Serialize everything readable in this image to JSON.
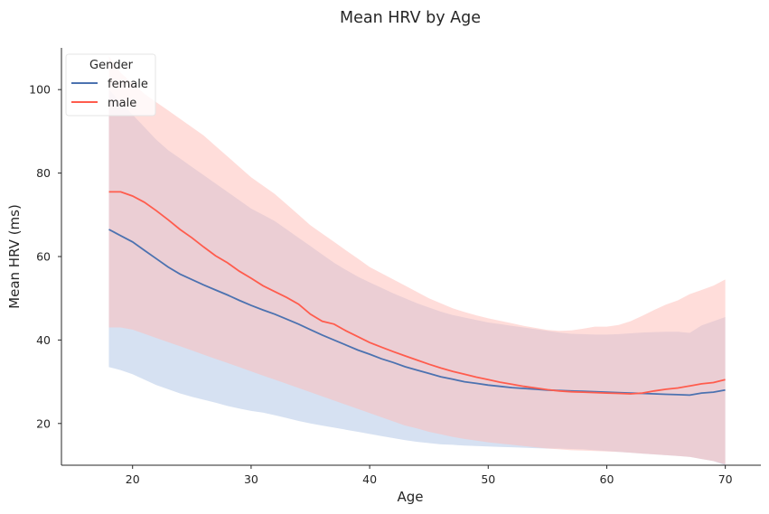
{
  "chart_data": {
    "type": "line",
    "title": "Mean HRV by Age",
    "xlabel": "Age",
    "ylabel": "Mean HRV (ms)",
    "xlim": [
      14,
      73
    ],
    "ylim": [
      10,
      110
    ],
    "xticks": [
      20,
      30,
      40,
      50,
      60,
      70
    ],
    "yticks": [
      20,
      40,
      60,
      80,
      100
    ],
    "grid": false,
    "legend": {
      "title": "Gender",
      "placement": "top-left"
    },
    "x": [
      18,
      19,
      20,
      21,
      22,
      23,
      24,
      25,
      26,
      27,
      28,
      29,
      30,
      31,
      32,
      33,
      34,
      35,
      36,
      37,
      38,
      39,
      40,
      41,
      42,
      43,
      44,
      45,
      46,
      47,
      48,
      49,
      50,
      51,
      52,
      53,
      54,
      55,
      56,
      57,
      58,
      59,
      60,
      61,
      62,
      63,
      64,
      65,
      66,
      67,
      68,
      69,
      70
    ],
    "series": [
      {
        "name": "female",
        "color": "#4c72b0",
        "band_color": "#aec4e5",
        "values": [
          66.5,
          65,
          63.5,
          61.5,
          59.5,
          57.5,
          55.8,
          54.5,
          53.2,
          52,
          50.8,
          49.5,
          48.3,
          47.2,
          46.2,
          45,
          43.8,
          42.5,
          41.2,
          40,
          38.8,
          37.6,
          36.6,
          35.5,
          34.6,
          33.6,
          32.8,
          32,
          31.2,
          30.6,
          30,
          29.6,
          29.2,
          28.9,
          28.6,
          28.4,
          28.2,
          28,
          27.9,
          27.8,
          27.7,
          27.6,
          27.5,
          27.4,
          27.3,
          27.2,
          27.1,
          27,
          26.9,
          26.8,
          27.3,
          27.5,
          28
        ],
        "lower": [
          33.5,
          32.8,
          31.8,
          30.5,
          29.2,
          28.2,
          27.2,
          26.4,
          25.7,
          25,
          24.2,
          23.6,
          23,
          22.6,
          22,
          21.3,
          20.6,
          20,
          19.5,
          19,
          18.5,
          18,
          17.5,
          17,
          16.5,
          16,
          15.6,
          15.3,
          15,
          14.9,
          14.7,
          14.6,
          14.5,
          14.4,
          14.3,
          14.2,
          14.1,
          14,
          14,
          13.9,
          13.8,
          13.6,
          13.4,
          13.2,
          13,
          12.8,
          12.6,
          12.4,
          12.2,
          12,
          11.5,
          11,
          10
        ],
        "upper": [
          100,
          97,
          94,
          91,
          88,
          85.5,
          83.5,
          81.5,
          79.5,
          77.5,
          75.5,
          73.5,
          71.5,
          70,
          68.5,
          66.5,
          64.5,
          62.5,
          60.5,
          58.5,
          56.8,
          55.2,
          53.8,
          52.5,
          51.2,
          50,
          48.8,
          47.8,
          46.8,
          46,
          45.4,
          44.8,
          44.2,
          43.8,
          43.4,
          43,
          42.6,
          42.2,
          41.8,
          41.5,
          41.4,
          41.3,
          41.3,
          41.4,
          41.6,
          41.8,
          41.9,
          42,
          42,
          41.7,
          43.5,
          44.5,
          45.5
        ]
      },
      {
        "name": "male",
        "color": "#ff5c4d",
        "band_color": "#ffbcb5",
        "values": [
          75.5,
          75.5,
          74.5,
          73,
          71,
          68.8,
          66.5,
          64.5,
          62.3,
          60.2,
          58.5,
          56.5,
          54.8,
          53,
          51.6,
          50.2,
          48.6,
          46.2,
          44.5,
          43.8,
          42.2,
          40.8,
          39.4,
          38.3,
          37.2,
          36.2,
          35.2,
          34.2,
          33.3,
          32.5,
          31.8,
          31.1,
          30.5,
          29.9,
          29.4,
          28.9,
          28.5,
          28.1,
          27.8,
          27.6,
          27.5,
          27.4,
          27.3,
          27.2,
          27.1,
          27.3,
          27.8,
          28.2,
          28.5,
          29,
          29.5,
          29.8,
          30.5
        ],
        "lower": [
          43,
          43,
          42.5,
          41.5,
          40.5,
          39.5,
          38.5,
          37.5,
          36.5,
          35.5,
          34.5,
          33.5,
          32.5,
          31.5,
          30.5,
          29.5,
          28.5,
          27.5,
          26.5,
          25.5,
          24.5,
          23.5,
          22.5,
          21.5,
          20.5,
          19.5,
          18.8,
          18,
          17.4,
          16.8,
          16.3,
          15.9,
          15.5,
          15.2,
          14.9,
          14.6,
          14.3,
          14,
          13.8,
          13.6,
          13.5,
          13.4,
          13.3,
          13.2,
          13,
          12.8,
          12.6,
          12.4,
          12.2,
          12,
          11.5,
          11,
          10.2
        ],
        "upper": [
          108,
          104,
          101.5,
          99,
          97,
          95,
          93,
          91,
          89,
          86.5,
          84,
          81.5,
          79,
          77,
          75,
          72.5,
          70,
          67.5,
          65.5,
          63.5,
          61.5,
          59.5,
          57.5,
          56,
          54.5,
          53,
          51.5,
          50,
          48.8,
          47.6,
          46.7,
          45.9,
          45.2,
          44.6,
          44,
          43.4,
          42.9,
          42.4,
          42.2,
          42.3,
          42.7,
          43.2,
          43.2,
          43.6,
          44.5,
          45.8,
          47.2,
          48.5,
          49.5,
          51,
          52,
          53,
          54.5
        ]
      }
    ]
  }
}
